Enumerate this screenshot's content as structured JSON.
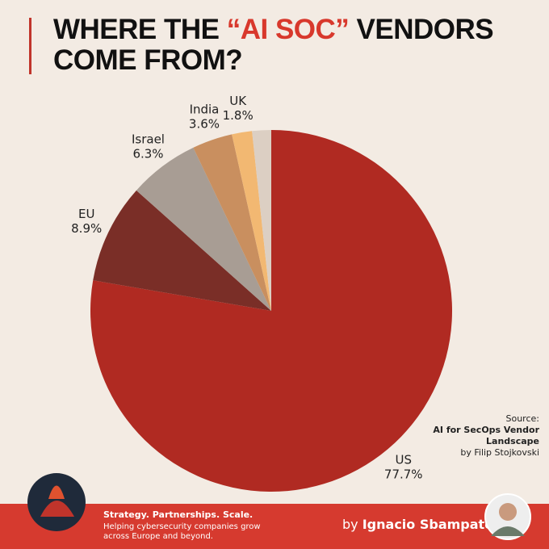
{
  "title_prefix": "WHERE THE ",
  "title_highlight": "“AI SOC”",
  "title_suffix": " VENDORS COME FROM?",
  "chart_data": {
    "type": "pie",
    "categories": [
      "US",
      "EU",
      "Israel",
      "India",
      "UK",
      null
    ],
    "values": [
      77.7,
      8.9,
      6.3,
      3.6,
      1.8,
      1.7
    ],
    "value_labels": [
      "77.7%",
      "8.9%",
      "6.3%",
      "3.6%",
      "1.8%",
      null
    ],
    "colors": [
      "#b02a22",
      "#7a2e27",
      "#a89d94",
      "#c98f5f",
      "#f2b872",
      "#dccfc3"
    ]
  },
  "source": {
    "label": "Source:",
    "title": "AI for SecOps Vendor Landscape",
    "author": "by Filip Stojkovski"
  },
  "footer": {
    "tagline": "Strategy. Partnerships. Scale.",
    "description": "Helping cybersecurity companies grow across Europe and beyond.",
    "by": "by",
    "name": "Ignacio Sbampato"
  }
}
